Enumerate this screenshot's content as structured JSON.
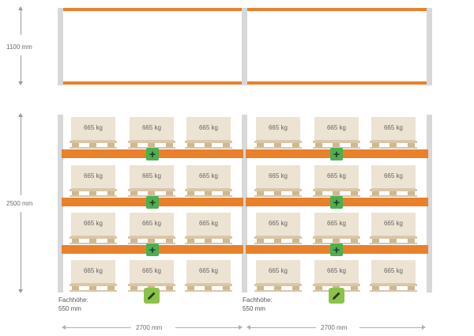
{
  "dimensions": {
    "top_height": "1100 mm",
    "main_height": "2500 mm",
    "bay_widths": [
      "2700 mm",
      "2700 mm"
    ]
  },
  "pallet_load": "665 kg",
  "levels": [
    {
      "name": "level-1",
      "pallets": [
        "665 kg",
        "665 kg",
        "665 kg",
        "665 kg",
        "665 kg",
        "665 kg"
      ]
    },
    {
      "name": "level-2",
      "pallets": [
        "665 kg",
        "665 kg",
        "665 kg",
        "665 kg",
        "665 kg",
        "665 kg"
      ]
    },
    {
      "name": "level-3",
      "pallets": [
        "665 kg",
        "665 kg",
        "665 kg",
        "665 kg",
        "665 kg",
        "665 kg"
      ]
    },
    {
      "name": "level-4",
      "pallets": [
        "665 kg",
        "665 kg",
        "665 kg",
        "665 kg",
        "665 kg",
        "665 kg"
      ]
    }
  ],
  "bays": [
    {
      "fach_label": "Fachhöhe:",
      "fach_value": "550 mm"
    },
    {
      "fach_label": "Fachhöhe:",
      "fach_value": "550 mm"
    }
  ],
  "colors": {
    "beam": "#e8812b",
    "post": "#d8d8d8",
    "add_button": "#4caf50",
    "edit_button": "#8bc34a",
    "pallet_box": "#ede3d3"
  },
  "icons": {
    "add": "plus-icon",
    "edit": "pencil-icon"
  }
}
